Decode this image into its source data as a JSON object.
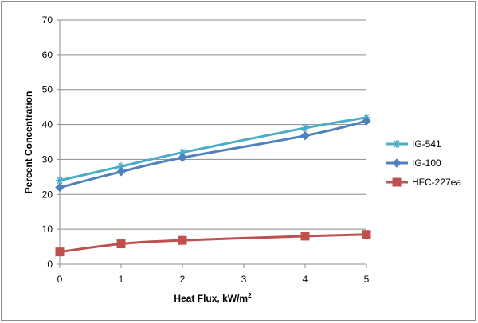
{
  "chart_data": {
    "type": "line",
    "xlabel": "Heat Flux, kW/m",
    "xlabel_sup": "2",
    "ylabel": "Percent Concentration",
    "x_ticks": [
      "0",
      "1",
      "2",
      "3",
      "4",
      "5"
    ],
    "y_ticks": [
      "0",
      "10",
      "20",
      "30",
      "40",
      "50",
      "60",
      "70"
    ],
    "ylim": [
      0,
      70
    ],
    "grid": "horizontal",
    "legend_position": "right",
    "series": [
      {
        "name": "IG-541",
        "color": "#4BACC6",
        "marker": "asterisk",
        "x": [
          0,
          1,
          2,
          4,
          5
        ],
        "values": [
          24,
          28,
          32,
          39,
          42
        ]
      },
      {
        "name": "IG-100",
        "color": "#4F81BD",
        "marker": "diamond",
        "x": [
          0,
          1,
          2,
          4,
          5
        ],
        "values": [
          22,
          26.5,
          30.5,
          36.8,
          41
        ]
      },
      {
        "name": "HFC-227ea",
        "color": "#C0504D",
        "marker": "square",
        "x": [
          0,
          1,
          2,
          4,
          5
        ],
        "values": [
          3.5,
          5.8,
          6.8,
          8,
          8.5
        ]
      }
    ]
  }
}
